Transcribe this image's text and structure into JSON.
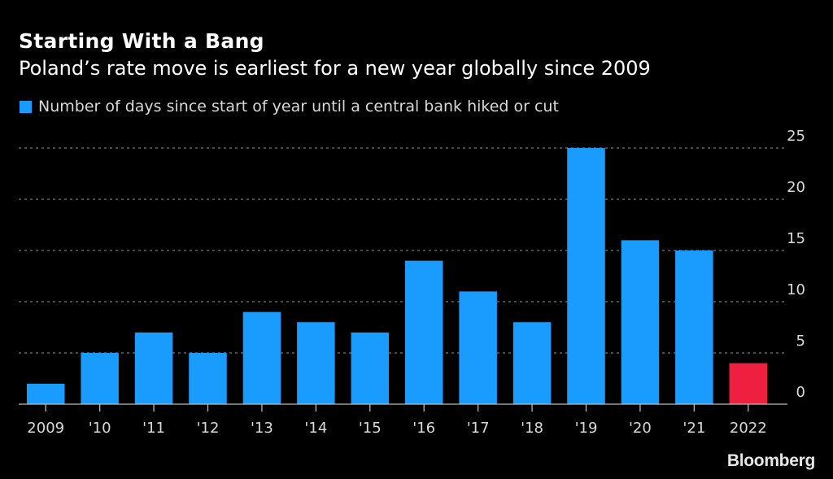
{
  "header": {
    "title": "Starting With a Bang",
    "subtitle": "Poland’s rate move is earliest for a new year globally since 2009"
  },
  "legend": {
    "label": "Number of days since start of year until a central bank hiked or cut",
    "color": "#1a9cff"
  },
  "source_logo": "Bloomberg",
  "chart_data": {
    "type": "bar",
    "title": "Starting With a Bang",
    "subtitle": "Poland’s rate move is earliest for a new year globally since 2009",
    "xlabel": "",
    "ylabel": "",
    "categories": [
      "2009",
      "'10",
      "'11",
      "'12",
      "'13",
      "'14",
      "'15",
      "'16",
      "'17",
      "'18",
      "'19",
      "'20",
      "'21",
      "2022"
    ],
    "series": [
      {
        "name": "Number of days since start of year until a central bank hiked or cut",
        "values": [
          2,
          5,
          7,
          5,
          9,
          8,
          7,
          14,
          11,
          8,
          25,
          16,
          15,
          4
        ]
      }
    ],
    "highlight": {
      "category": "2022",
      "color": "#ee1f3f"
    },
    "bar_color": "#1a9cff",
    "ylim": [
      0,
      25
    ],
    "yticks": [
      0,
      5,
      10,
      15,
      20,
      25
    ],
    "ytick_labels": [
      "0",
      "5",
      "10",
      "15",
      "20",
      "25"
    ],
    "y_axis_side": "right",
    "grid": true,
    "grid_style": "dotted",
    "legend_position": "top-left"
  }
}
